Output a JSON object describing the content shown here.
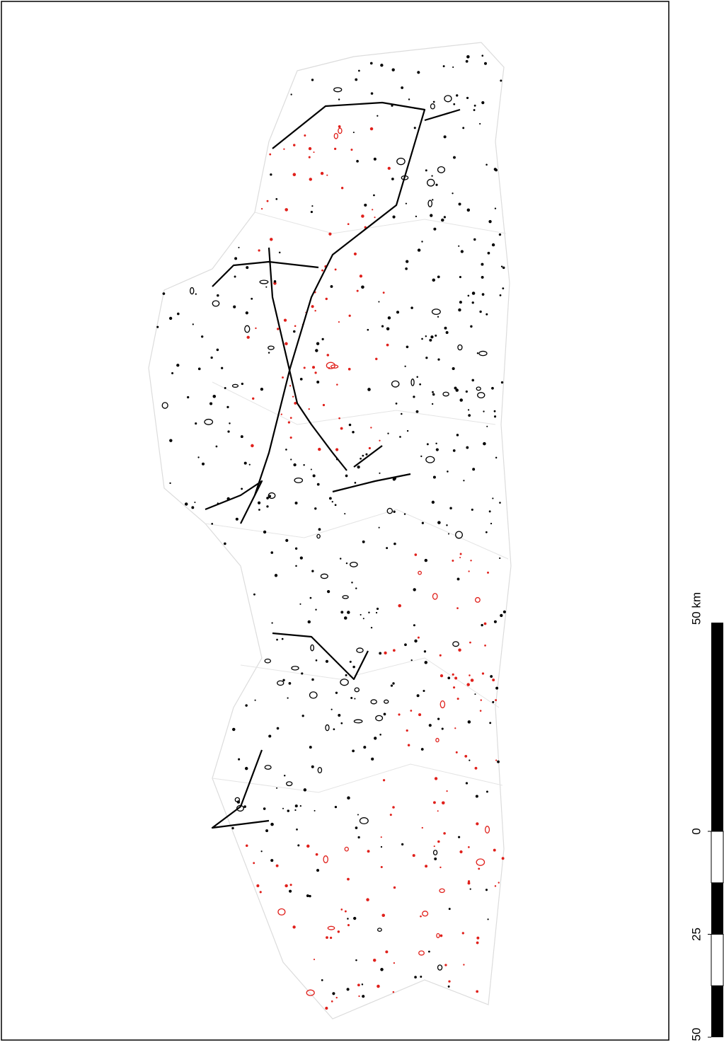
{
  "scale_bar": {
    "title": "50 km",
    "ticks": [
      0,
      25,
      50
    ]
  }
}
